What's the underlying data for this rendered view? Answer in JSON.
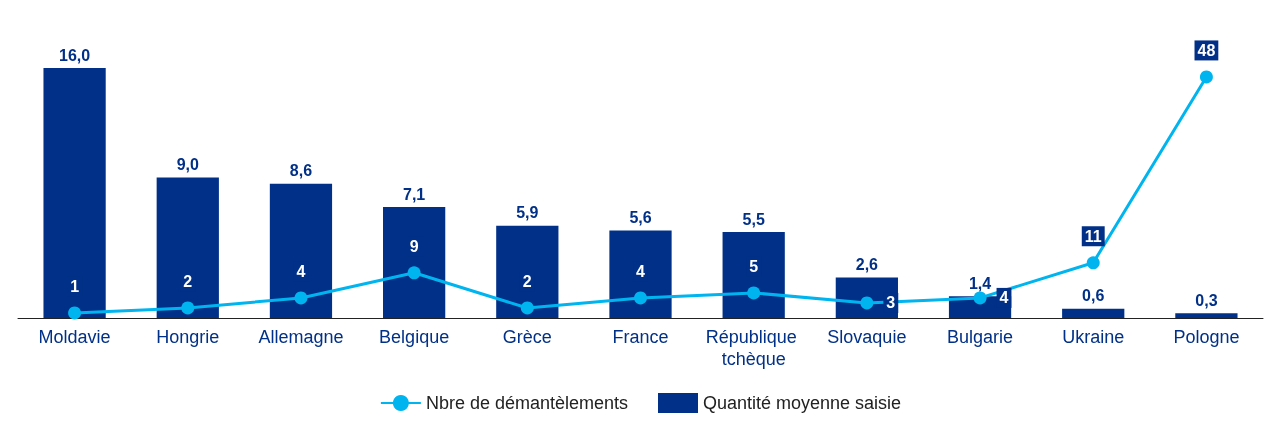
{
  "chart_data": {
    "type": "bar",
    "categories": [
      "Moldavie",
      "Hongrie",
      "Allemagne",
      "Belgique",
      "Grèce",
      "France",
      "République tchèque",
      "Slovaquie",
      "Bulgarie",
      "Ukraine",
      "Pologne"
    ],
    "series": [
      {
        "name": "Nbre de démantèlements",
        "type": "line",
        "axis": "y2",
        "color": "#00b5ef",
        "marker": "circle",
        "values": [
          1,
          2,
          4,
          9,
          2,
          4,
          5,
          3,
          4,
          11,
          48
        ],
        "value_labels": [
          "1",
          "2",
          "4",
          "9",
          "2",
          "4",
          "5",
          "3",
          "4",
          "11",
          "48"
        ]
      },
      {
        "name": "Quantité moyenne saisie",
        "color": "#003087",
        "values": [
          16.0,
          9.0,
          8.6,
          7.1,
          5.9,
          5.6,
          5.5,
          2.6,
          1.4,
          0.6,
          0.3
        ],
        "value_labels": [
          "16,0",
          "9,0",
          "8,6",
          "7,1",
          "5,9",
          "5,6",
          "5,5",
          "2,6",
          "1,4",
          "0,6",
          "0,3"
        ]
      }
    ],
    "legend": "bottom",
    "grid": false,
    "tick_labels": "x"
  }
}
